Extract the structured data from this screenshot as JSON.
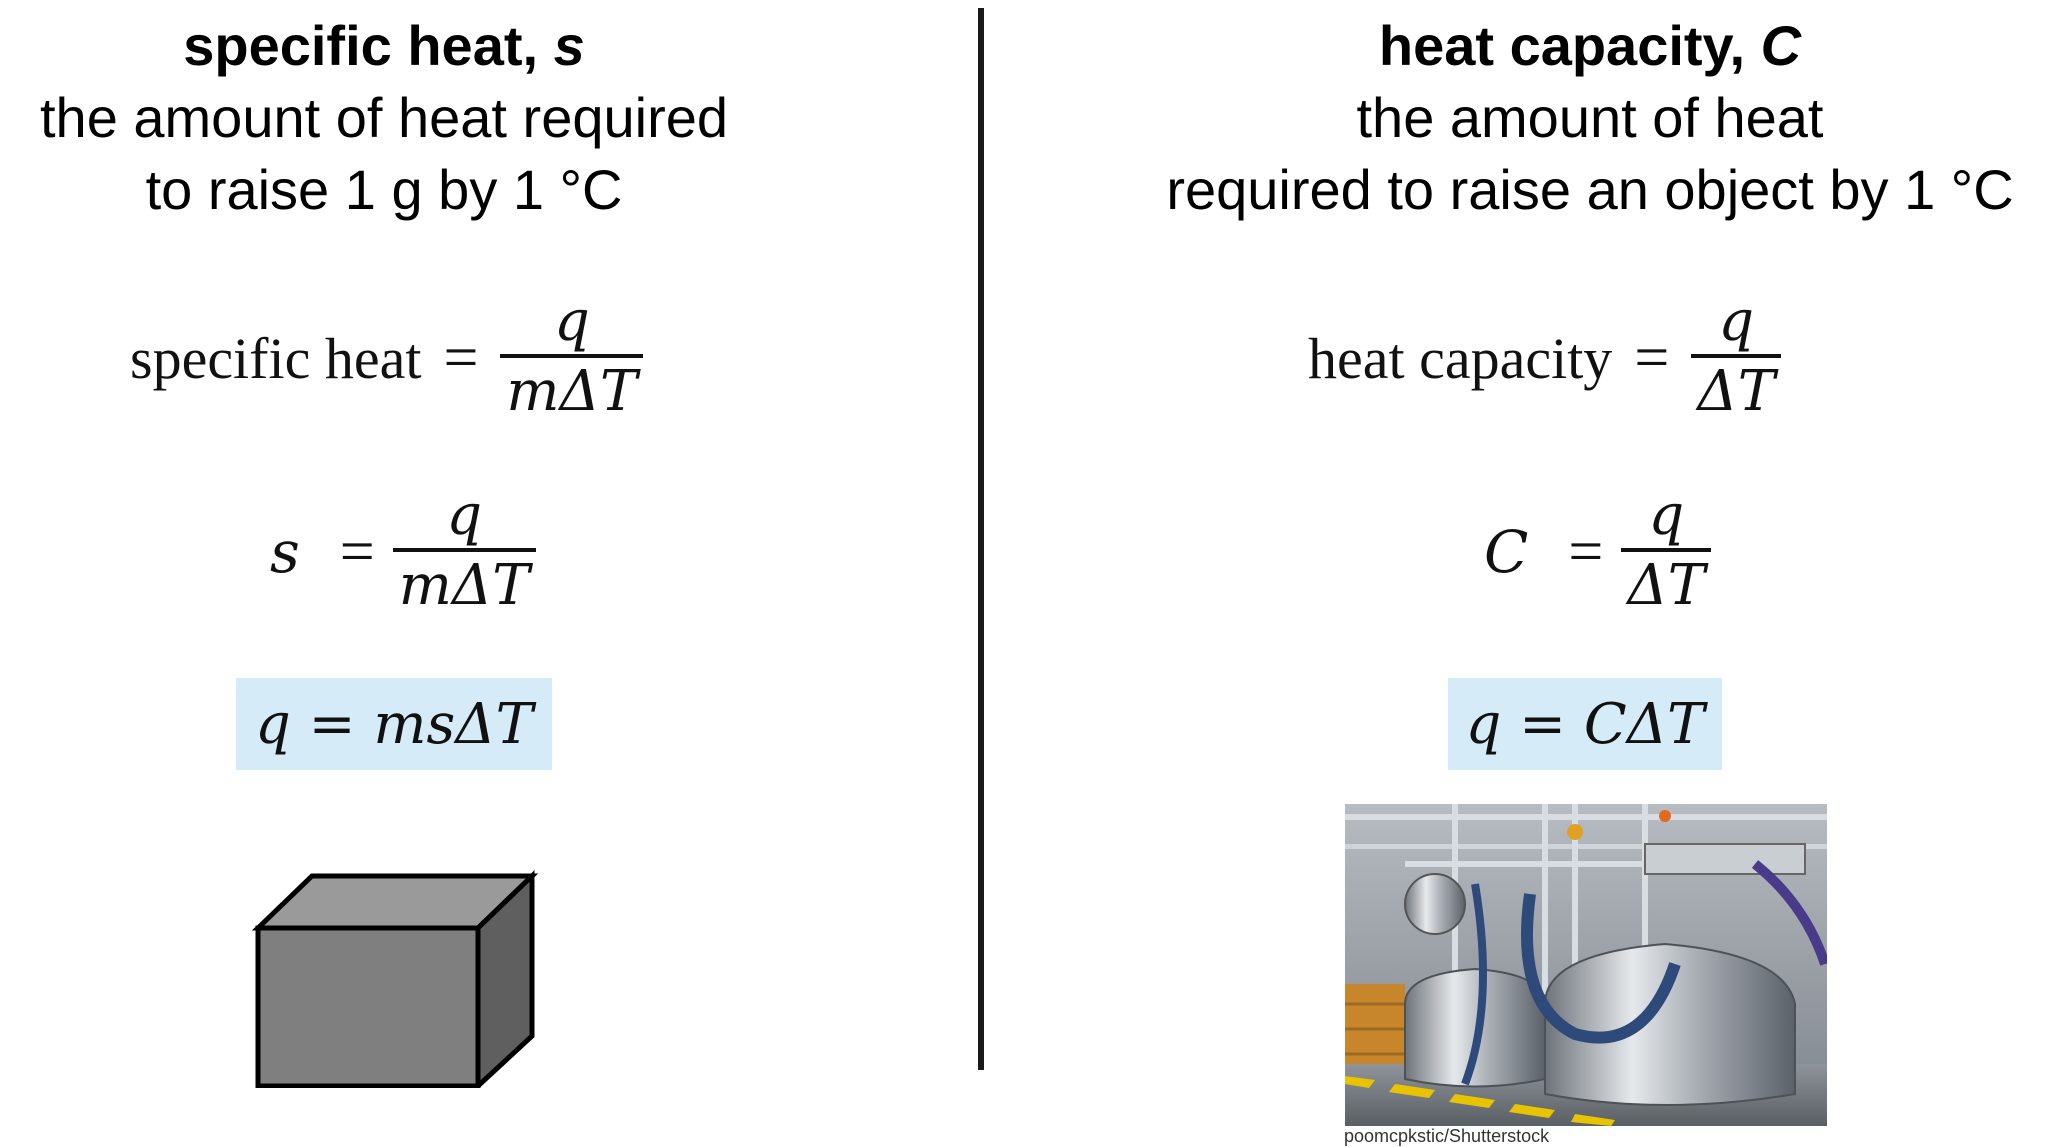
{
  "left": {
    "title": "specific heat,",
    "title_var": "s",
    "desc_line1": "the amount of heat required",
    "desc_line2": "to raise 1 g  by 1 °C",
    "eq1": {
      "lhs": "specific heat",
      "op": "=",
      "num": "q",
      "den": "mΔT"
    },
    "eq2": {
      "lhs": "s",
      "op": "=",
      "num": "q",
      "den": "mΔT"
    },
    "highlight": "q = msΔT",
    "object_icon": "gray-cube-icon"
  },
  "right": {
    "title": "heat capacity,",
    "title_var": "C",
    "desc_line1": "the amount of heat",
    "desc_line2": "required to raise an object by 1 °C",
    "eq1": {
      "lhs": "heat capacity",
      "op": "=",
      "num": "q",
      "den": "ΔT"
    },
    "eq2": {
      "lhs": "C",
      "op": "=",
      "num": "q",
      "den": "ΔT"
    },
    "highlight": "q = CΔT",
    "photo_icon": "industrial-tanks-photo",
    "credit": "poomcpkstic/Shutterstock"
  },
  "colors": {
    "highlight_bg": "#d6ebf8",
    "cube": "#7f7f7f",
    "divider": "#1a1a1a"
  }
}
